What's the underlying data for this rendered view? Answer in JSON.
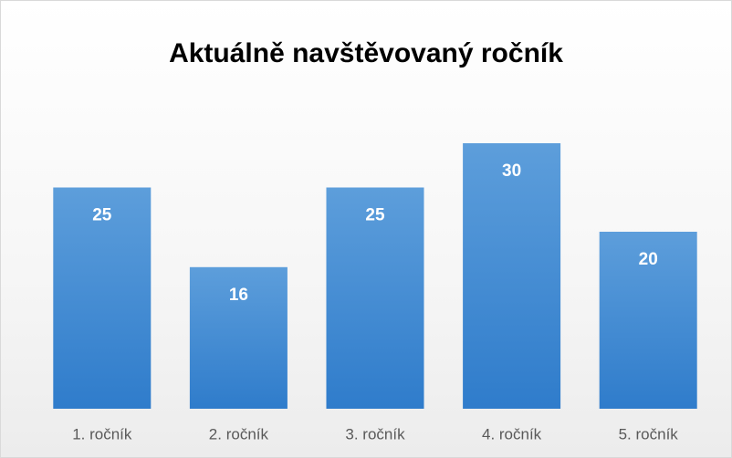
{
  "chart_data": {
    "type": "bar",
    "title": "Aktuálně navštěvovaný ročník",
    "categories": [
      "1. ročník",
      "2. ročník",
      "3. ročník",
      "4. ročník",
      "5. ročník"
    ],
    "values": [
      25,
      16,
      25,
      30,
      20
    ],
    "color": "#4a8fd6"
  }
}
